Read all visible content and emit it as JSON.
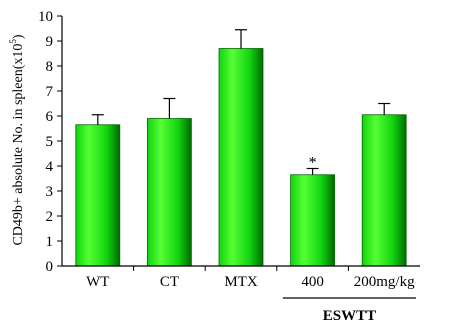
{
  "chart_data": {
    "type": "bar",
    "ylabel": "CD49b+ absolute No. in spleen(x10⁵)",
    "ylabel_main": "CD49b+ absolute No. in spleen(x10",
    "ylabel_sup": "5",
    "ylabel_tail": ")",
    "ylim": [
      0,
      10
    ],
    "yticks": [
      "0",
      "1",
      "2",
      "3",
      "4",
      "5",
      "6",
      "7",
      "8",
      "9",
      "10"
    ],
    "grid": false,
    "categories": [
      "WT",
      "CT",
      "MTX",
      "400",
      "200mg/kg"
    ],
    "values": [
      5.65,
      5.9,
      8.7,
      3.65,
      6.05
    ],
    "errors": [
      0.4,
      0.8,
      0.75,
      0.25,
      0.45
    ],
    "annotations": [
      {
        "category": "400",
        "text": "*"
      }
    ],
    "group_label": {
      "text": "ESWTT",
      "categories": [
        "400",
        "200mg/kg"
      ]
    },
    "colors": {
      "bar_light": "#55ff33",
      "bar_mid": "#11d411",
      "bar_dark": "#006a00",
      "axis": "#000000"
    }
  }
}
